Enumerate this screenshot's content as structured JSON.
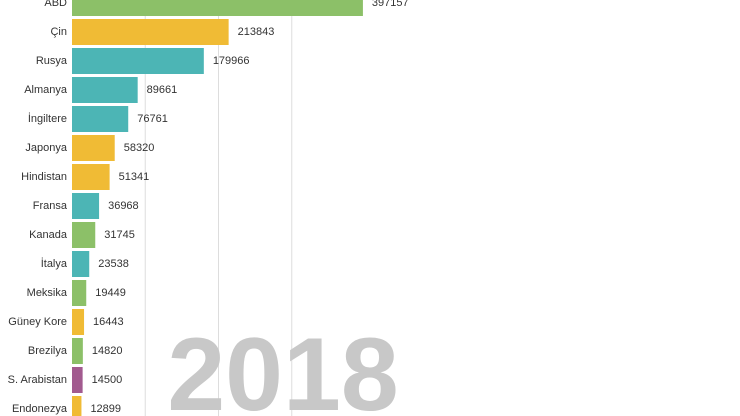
{
  "chart_data": {
    "type": "hbar",
    "annotation": "2018",
    "categories": [
      "ABD",
      "Çin",
      "Rusya",
      "Almanya",
      "İngiltere",
      "Japonya",
      "Hindistan",
      "Fransa",
      "Kanada",
      "İtalya",
      "Meksika",
      "Güney Kore",
      "Brezilya",
      "S. Arabistan",
      "Endonezya"
    ],
    "values": [
      397157,
      213843,
      179966,
      89661,
      76761,
      58320,
      51341,
      36968,
      31745,
      23538,
      19449,
      16443,
      14820,
      14500,
      12899
    ],
    "colors": [
      "#8cc068",
      "#f0bb35",
      "#4cb5b5",
      "#4cb5b5",
      "#4cb5b5",
      "#f0bb35",
      "#f0bb35",
      "#4cb5b5",
      "#8cc068",
      "#4cb5b5",
      "#8cc068",
      "#f0bb35",
      "#8cc068",
      "#a25a8f",
      "#f0bb35"
    ],
    "xlim": [
      0,
      400000
    ],
    "xticks": [
      100000,
      200000,
      300000
    ],
    "grid": true
  }
}
